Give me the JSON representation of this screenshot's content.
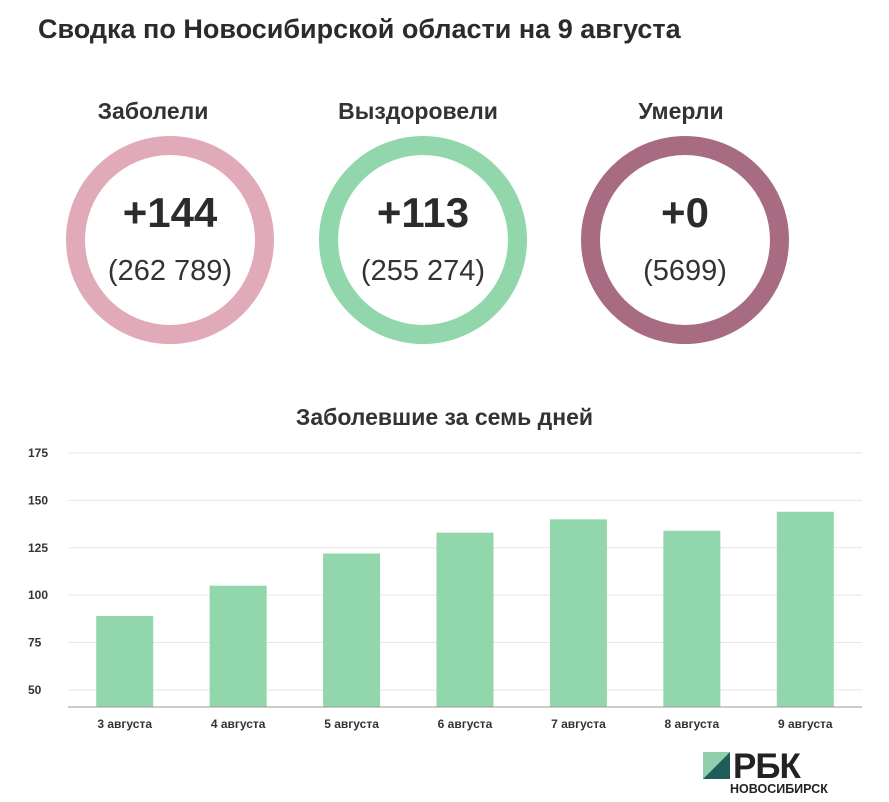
{
  "title": "Сводка по Новосибирской области на 9 августа",
  "stats": [
    {
      "label": "Заболели",
      "delta": "+144",
      "total": "(262 789)",
      "color": "#e0aab8"
    },
    {
      "label": "Выздоровели",
      "delta": "+113",
      "total": "(255 274)",
      "color": "#92d6ab"
    },
    {
      "label": "Умерли",
      "delta": "+0",
      "total": "(5699)",
      "color": "#a86c82"
    }
  ],
  "chart_data": {
    "type": "bar",
    "title": "Заболевшие за семь дней",
    "categories": [
      "3 августа",
      "4 августа",
      "5 августа",
      "6 августа",
      "7 августа",
      "8 августа",
      "9 августа"
    ],
    "values": [
      89,
      105,
      122,
      133,
      140,
      134,
      144
    ],
    "yticks": [
      50,
      75,
      100,
      125,
      150,
      175
    ],
    "ylim": [
      41,
      175
    ],
    "grid": true,
    "color": "#92d6ab",
    "xlabel": "",
    "ylabel": ""
  },
  "logo": {
    "brand": "РБК",
    "city": "НОВОСИБИРСК"
  }
}
